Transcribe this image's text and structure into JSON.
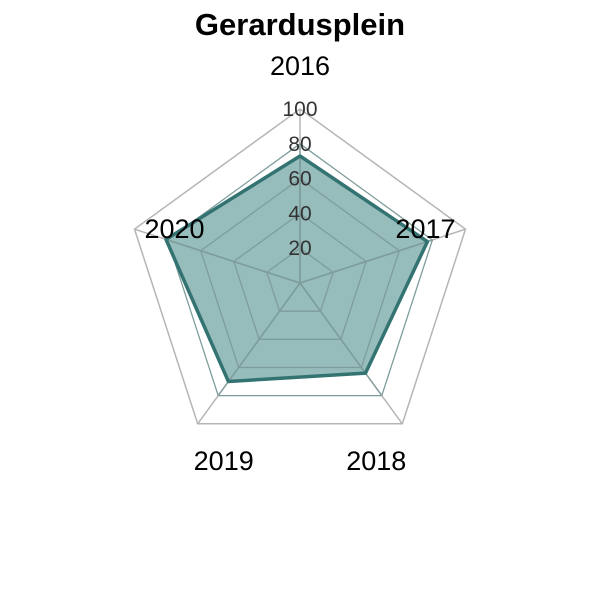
{
  "chart_data": {
    "type": "radar",
    "title": "Gerardusplein",
    "categories": [
      "2016",
      "2017",
      "2018",
      "2019",
      "2020"
    ],
    "series": [
      {
        "values": [
          73,
          77,
          64,
          70,
          81
        ]
      }
    ],
    "rlim": [
      0,
      100
    ],
    "ticks": [
      "20",
      "40",
      "60",
      "80",
      "100"
    ],
    "grid": true,
    "colors": {
      "fill": "#2f7a7a",
      "line": "#337372",
      "outer_grid": "#b5b5b5",
      "inner_grid": "#7f9c9c"
    }
  }
}
